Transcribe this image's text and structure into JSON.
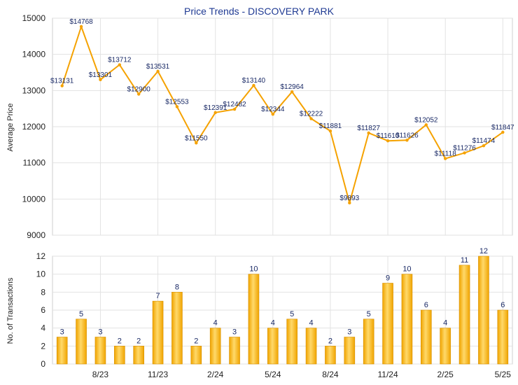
{
  "chart_data": [
    {
      "type": "line",
      "title": "Price Trends - DISCOVERY PARK",
      "ylabel": "Average Price",
      "ylim": [
        9000,
        15000
      ],
      "yticks": [
        9000,
        10000,
        11000,
        12000,
        13000,
        14000,
        15000
      ],
      "grid": true,
      "color": "#f5a200",
      "series": [
        {
          "values": [
            13131,
            14768,
            13301,
            13712,
            12900,
            13531,
            12553,
            11550,
            12391,
            12482,
            13140,
            12344,
            12964,
            12222,
            11881,
            9893,
            11827,
            11610,
            11626,
            12052,
            11118,
            11276,
            11474,
            11847
          ],
          "labels": [
            "$13131",
            "$14768",
            "$13301",
            "$13712",
            "$12900",
            "$13531",
            "$12553",
            "$11550",
            "$12391",
            "$12482",
            "$13140",
            "$12344",
            "$12964",
            "$12222",
            "$11881",
            "$9893",
            "$11827",
            "$11610",
            "$11626",
            "$12052",
            "$11118",
            "$11276",
            "$11474",
            "$11847"
          ]
        }
      ]
    },
    {
      "type": "bar",
      "ylabel": "No. of Transactions",
      "ylim": [
        0,
        12
      ],
      "yticks": [
        0,
        2,
        4,
        6,
        8,
        10,
        12
      ],
      "grid": true,
      "color": "#f5a200",
      "values": [
        3,
        5,
        3,
        2,
        2,
        7,
        8,
        2,
        4,
        3,
        10,
        4,
        5,
        4,
        2,
        3,
        5,
        9,
        10,
        6,
        4,
        11,
        12,
        6
      ],
      "xtick_labels": [
        "8/23",
        "11/23",
        "2/24",
        "5/24",
        "8/24",
        "11/24",
        "2/25",
        "5/25"
      ],
      "xtick_index": [
        2,
        5,
        8,
        11,
        14,
        17,
        20,
        23
      ]
    }
  ]
}
